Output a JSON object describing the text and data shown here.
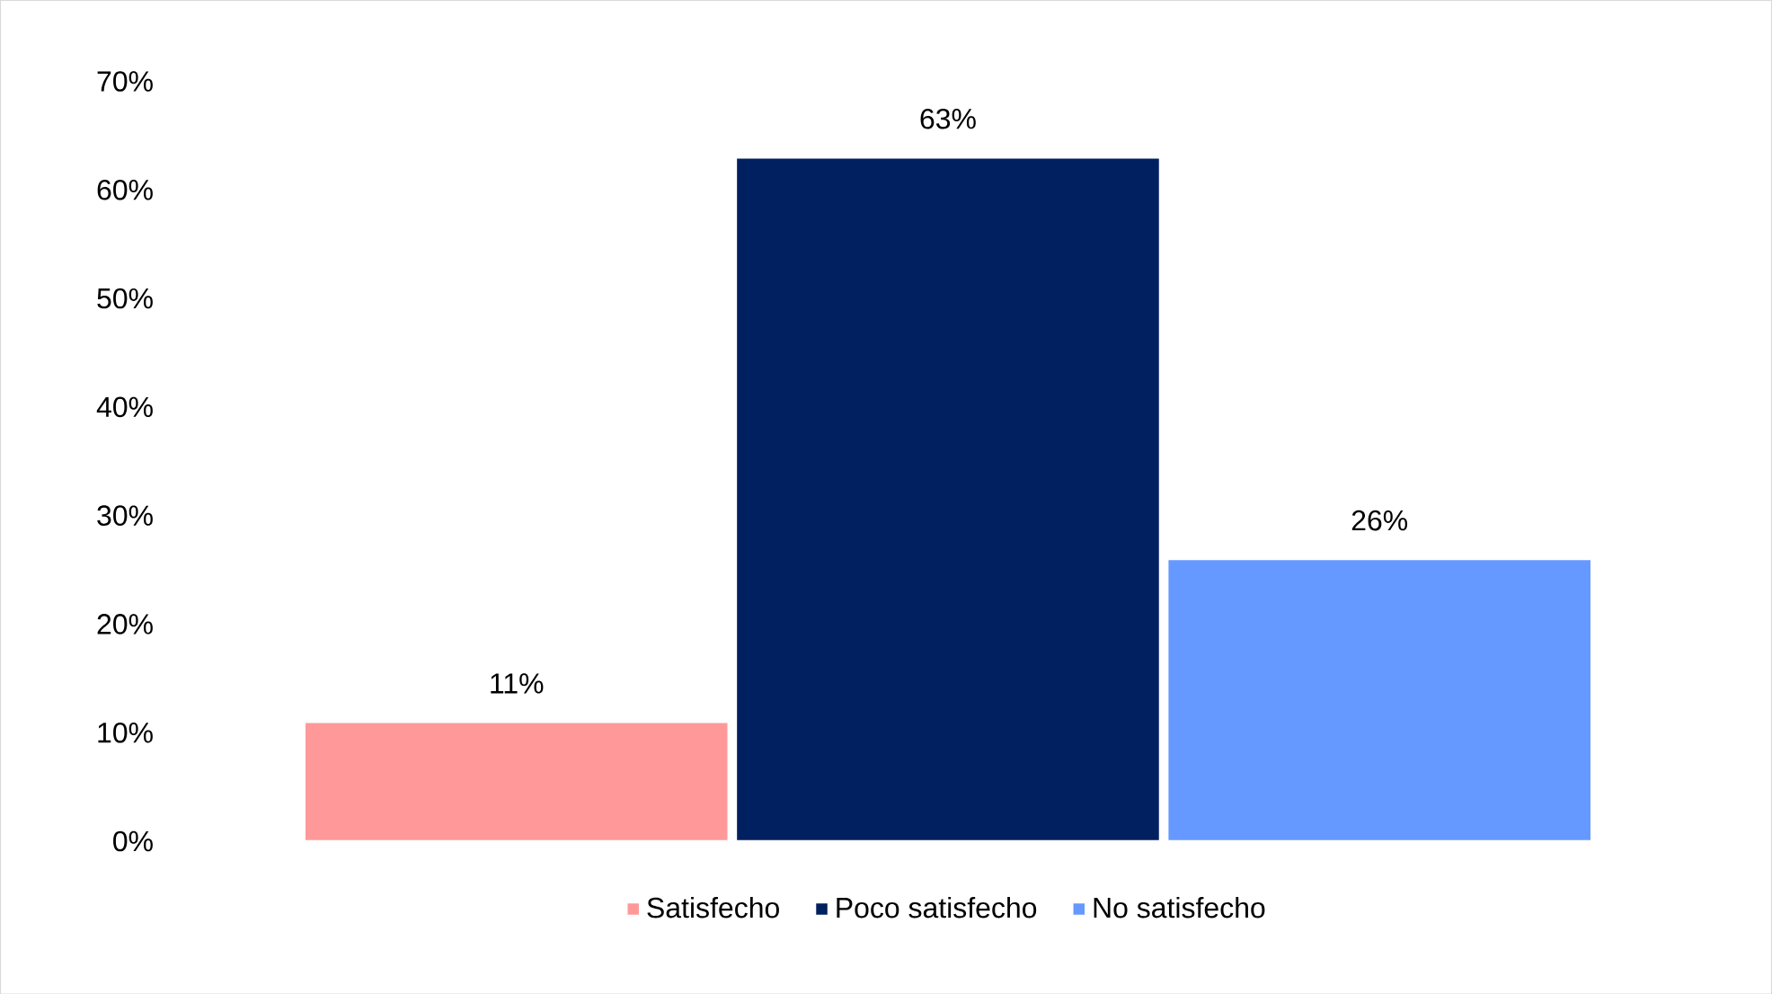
{
  "chart_data": {
    "type": "bar",
    "categories": [
      null
    ],
    "series": [
      {
        "name": "Satisfecho",
        "color": "#ff9999",
        "values": [
          11
        ],
        "value_labels": [
          "11%"
        ]
      },
      {
        "name": "Poco satisfecho",
        "color": "#002060",
        "values": [
          63
        ],
        "value_labels": [
          "63%"
        ]
      },
      {
        "name": "No satisfecho",
        "color": "#6699ff",
        "values": [
          26
        ],
        "value_labels": [
          "26%"
        ]
      }
    ],
    "ylim": [
      0,
      70
    ],
    "yticks": [
      {
        "value": 0,
        "label": "0%"
      },
      {
        "value": 10,
        "label": "10%"
      },
      {
        "value": 20,
        "label": "20%"
      },
      {
        "value": 30,
        "label": "30%"
      },
      {
        "value": 40,
        "label": "40%"
      },
      {
        "value": 50,
        "label": "50%"
      },
      {
        "value": 60,
        "label": "60%"
      },
      {
        "value": 70,
        "label": "70%"
      }
    ],
    "legend": "bottom",
    "grid": false
  }
}
